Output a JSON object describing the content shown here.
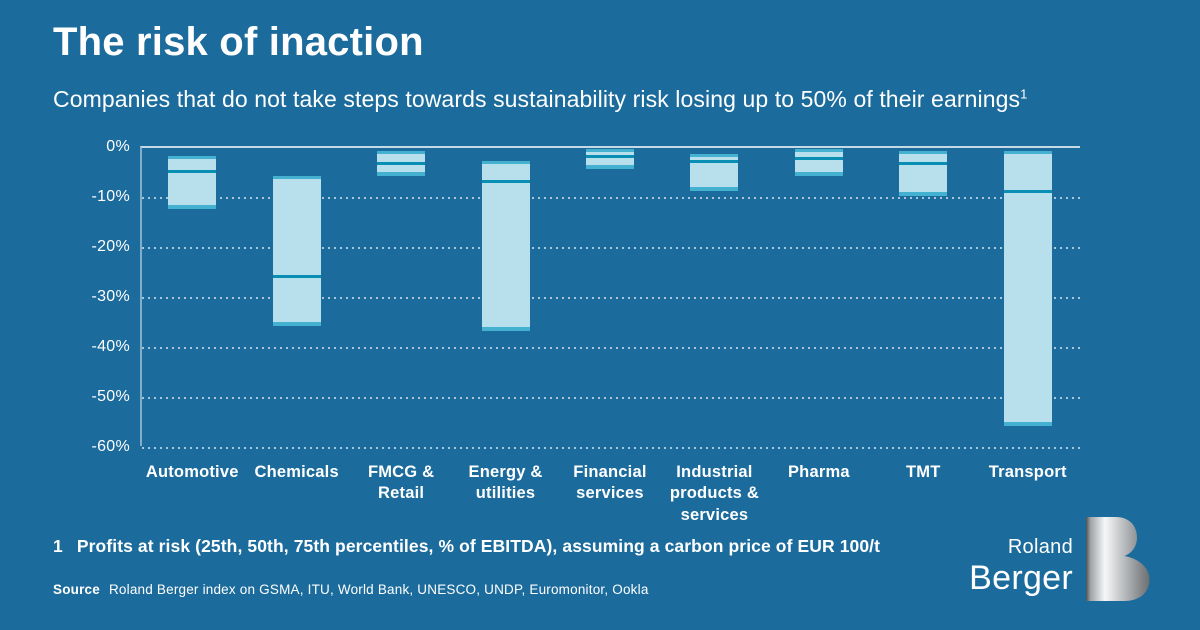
{
  "header": {
    "title": "The risk of inaction",
    "subtitle": "Companies that do not take steps towards sustainability risk losing up to 50% of their earnings",
    "subtitle_superscript": "1"
  },
  "footnote": {
    "marker": "1",
    "text": "Profits at risk (25th, 50th, 75th percentiles, % of EBITDA), assuming a carbon price of EUR 100/t"
  },
  "source": {
    "label": "Source",
    "text": "Roland Berger index on GSMA, ITU, World Bank, UNESCO, UNDP, Euromonitor, Ookla"
  },
  "logo": {
    "line1": "Roland",
    "line2": "Berger"
  },
  "colors": {
    "background": "#1b6b9c",
    "bar_fill": "#b7e0ec",
    "bar_edge": "#45b1d1",
    "median_line": "#0a8fb4",
    "text": "#ffffff"
  },
  "chart_data": {
    "type": "bar",
    "subtype": "floating percentile-range bars (25th to 75th percentile, median marked)",
    "title": "The risk of inaction",
    "xlabel": "",
    "ylabel": "% of EBITDA",
    "ylim": [
      0,
      -60
    ],
    "yticks": [
      "0%",
      "-10%",
      "-20%",
      "-30%",
      "-40%",
      "-50%",
      "-60%"
    ],
    "grid": "horizontal dotted",
    "legend": "none",
    "categories": [
      "Automotive",
      "Chemicals",
      "FMCG &\nRetail",
      "Energy &\nutilities",
      "Financial\nservices",
      "Industrial\nproducts &\nservices",
      "Pharma",
      "TMT",
      "Transport"
    ],
    "series": [
      {
        "name": "25th percentile (% of EBITDA)",
        "values": [
          -2,
          -6,
          -1,
          -3,
          -0.5,
          -1.5,
          -0.5,
          -1,
          -1
        ]
      },
      {
        "name": "50th percentile / median (% of EBITDA)",
        "values": [
          -5,
          -26,
          -3.5,
          -7,
          -2,
          -3,
          -2.5,
          -3.5,
          -9
        ]
      },
      {
        "name": "75th percentile (% of EBITDA)",
        "values": [
          -12.5,
          -36,
          -6,
          -37,
          -4.5,
          -9,
          -6,
          -10,
          -56
        ]
      }
    ]
  }
}
